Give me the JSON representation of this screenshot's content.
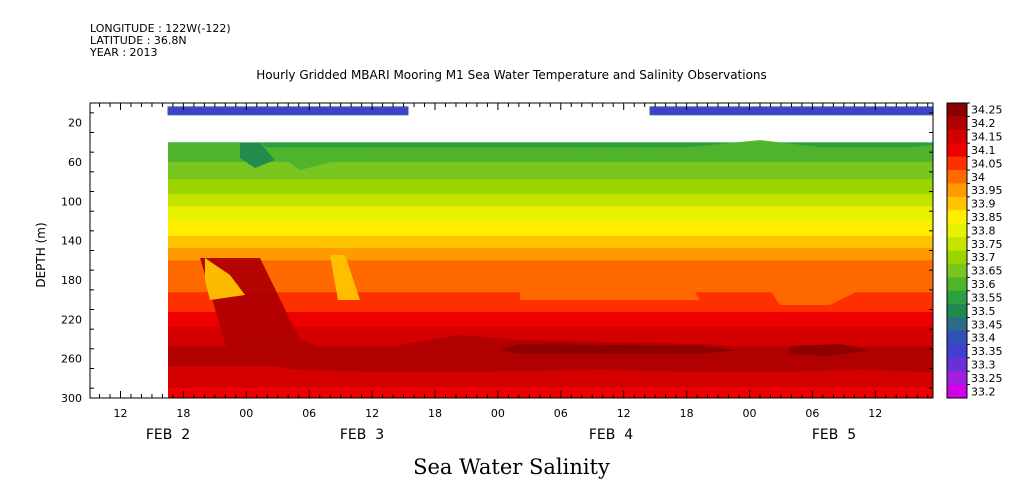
{
  "header": {
    "longitude": "LONGITUDE : 122W(-122)",
    "latitude": "LATITUDE : 36.8N",
    "year": "YEAR : 2013"
  },
  "chart_data": {
    "type": "heatmap",
    "title": "Hourly Gridded MBARI Mooring M1 Sea Water Temperature and Salinity Observations",
    "xlabel": "Sea Water Salinity",
    "ylabel": "DEPTH (m)",
    "x_hour_ticks": [
      "12",
      "18",
      "00",
      "06",
      "12",
      "18",
      "00",
      "06",
      "12",
      "18",
      "00",
      "06",
      "12"
    ],
    "x_date_labels": [
      "FEB  2",
      "FEB  3",
      "FEB  4",
      "FEB  5"
    ],
    "y_ticks": [
      20,
      60,
      100,
      140,
      180,
      220,
      260,
      300
    ],
    "ylim": [
      300,
      0
    ],
    "colorbar": {
      "levels": [
        34.25,
        34.2,
        34.15,
        34.1,
        34.05,
        34,
        33.95,
        33.9,
        33.85,
        33.8,
        33.75,
        33.7,
        33.65,
        33.6,
        33.55,
        33.5,
        33.45,
        33.4,
        33.35,
        33.3,
        33.25,
        33.2
      ],
      "labels": [
        "34.25",
        "34.2",
        "34.15",
        "34.1",
        "34.05",
        "34",
        "33.95",
        "33.9",
        "33.85",
        "33.8",
        "33.75",
        "33.7",
        "33.65",
        "33.6",
        "33.55",
        "33.5",
        "33.45",
        "33.4",
        "33.35",
        "33.3",
        "33.25",
        "33.2"
      ],
      "colors": [
        "#8a0000",
        "#b00000",
        "#d40000",
        "#ee0000",
        "#ff3000",
        "#ff6a00",
        "#ff9a00",
        "#ffc400",
        "#ffee00",
        "#e8f200",
        "#c4e400",
        "#9cd400",
        "#78c61e",
        "#4fb42c",
        "#2aa040",
        "#1f8a50",
        "#2a6c8a",
        "#3350b8",
        "#4040d0",
        "#6a30d8",
        "#a020e0",
        "#d000e8"
      ]
    },
    "depth_profile": [
      {
        "depth": 40,
        "value": 33.53
      },
      {
        "depth": 60,
        "value": 33.6
      },
      {
        "depth": 80,
        "value": 33.66
      },
      {
        "depth": 100,
        "value": 33.73
      },
      {
        "depth": 120,
        "value": 33.8
      },
      {
        "depth": 140,
        "value": 33.87
      },
      {
        "depth": 160,
        "value": 33.95
      },
      {
        "depth": 180,
        "value": 33.97
      },
      {
        "depth": 200,
        "value": 34.02
      },
      {
        "depth": 220,
        "value": 34.07
      },
      {
        "depth": 240,
        "value": 34.14
      },
      {
        "depth": 260,
        "value": 34.17
      },
      {
        "depth": 280,
        "value": 34.12
      },
      {
        "depth": 300,
        "value": 34.08
      }
    ],
    "surface_bars_depth": 8
  }
}
